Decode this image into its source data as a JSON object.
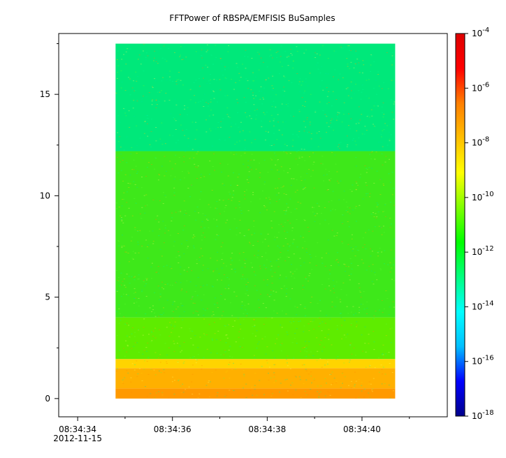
{
  "chart_data": {
    "type": "heatmap",
    "title": "FFTPower of RBSPA/EMFISIS  BuSamples",
    "x_axis": {
      "type": "time",
      "range": [
        "08:34:33.6",
        "08:34:41.8"
      ],
      "ticks": [
        "08:34:34",
        "08:34:36",
        "08:34:38",
        "08:34:40"
      ],
      "date_label": "2012-11-15",
      "minor_ticks": [
        "08:34:35",
        "08:34:37",
        "08:34:39",
        "08:34:41"
      ]
    },
    "y_axis": {
      "range": [
        -0.9,
        18.0
      ],
      "ticks": [
        0,
        5,
        10,
        15
      ],
      "minor_ticks": [
        2.5,
        7.5,
        12.5,
        17.5
      ],
      "label": ""
    },
    "colorbar": {
      "scale": "log",
      "range": [
        1e-18,
        0.0001
      ],
      "colors": [
        "#00008b",
        "#0000ff",
        "#00bfff",
        "#00ffff",
        "#00ff7f",
        "#00ff00",
        "#7fff00",
        "#ffff00",
        "#ffbf00",
        "#ff7f00",
        "#ff0000",
        "#dd0000"
      ],
      "tick_exponents": [
        -18,
        -16,
        -14,
        -12,
        -10,
        -8,
        -6,
        -4
      ],
      "tick_base": "10"
    },
    "data_extent": {
      "x": [
        "08:34:34.8",
        "08:34:40.7"
      ],
      "y": [
        0.0,
        17.5
      ]
    },
    "bands": [
      {
        "y": [
          0.0,
          0.5
        ],
        "log10_power": -7.0,
        "color": "#ff9900"
      },
      {
        "y": [
          0.5,
          1.5
        ],
        "log10_power": -7.5,
        "color": "#ffb000"
      },
      {
        "y": [
          1.5,
          1.95
        ],
        "log10_power": -8.2,
        "color": "#ffd400"
      },
      {
        "y": [
          1.95,
          4.0
        ],
        "log10_power": -9.8,
        "color": "#5eec00"
      },
      {
        "y": [
          4.0,
          12.2
        ],
        "log10_power": -10.3,
        "color": "#3ee81a"
      },
      {
        "y": [
          12.2,
          17.5
        ],
        "log10_power": -11.8,
        "color": "#00e87a"
      }
    ]
  }
}
